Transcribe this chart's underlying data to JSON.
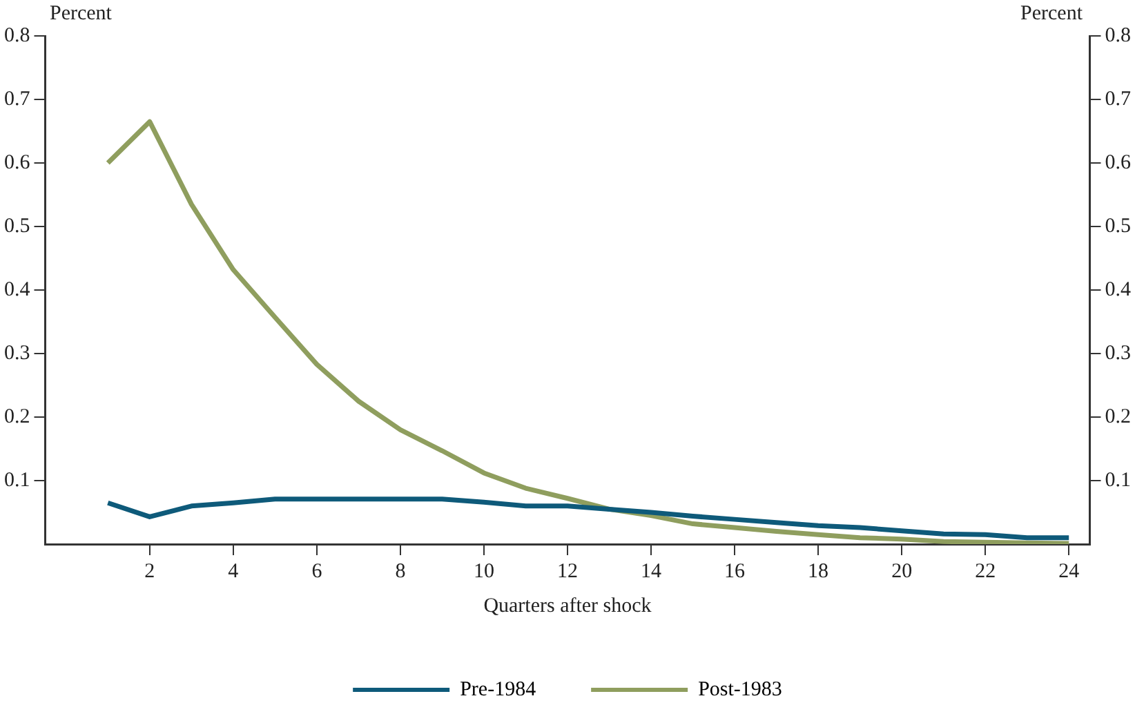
{
  "chart_data": {
    "type": "line",
    "xlabel": "Quarters after shock",
    "ylabel": "Percent",
    "y2label": "Percent",
    "x": [
      1,
      2,
      3,
      4,
      5,
      6,
      7,
      8,
      9,
      10,
      11,
      12,
      13,
      14,
      15,
      16,
      17,
      18,
      19,
      20,
      21,
      22,
      23,
      24
    ],
    "series": [
      {
        "name": "Pre-1984",
        "color": "#0e5a7a",
        "values": [
          0.065,
          0.043,
          0.06,
          0.065,
          0.071,
          0.071,
          0.071,
          0.071,
          0.071,
          0.066,
          0.06,
          0.06,
          0.055,
          0.05,
          0.044,
          0.039,
          0.034,
          0.029,
          0.026,
          0.021,
          0.016,
          0.015,
          0.01,
          0.01
        ]
      },
      {
        "name": "Post-1983",
        "color": "#8f9e5e",
        "values": [
          0.6,
          0.665,
          0.535,
          0.432,
          0.357,
          0.283,
          0.225,
          0.18,
          0.147,
          0.112,
          0.088,
          0.072,
          0.055,
          0.045,
          0.032,
          0.026,
          0.02,
          0.015,
          0.01,
          0.008,
          0.004,
          0.003,
          0.002,
          0.001
        ]
      }
    ],
    "xlim": [
      -0.5,
      24.5
    ],
    "xticks": [
      2,
      4,
      6,
      8,
      10,
      12,
      14,
      16,
      18,
      20,
      22,
      24
    ],
    "ylim": [
      0,
      0.8
    ],
    "yticks": [
      0.1,
      0.2,
      0.3,
      0.4,
      0.5,
      0.6,
      0.7,
      0.8
    ],
    "y2lim": [
      0,
      0.8
    ],
    "y2ticks": [
      0.1,
      0.2,
      0.3,
      0.4,
      0.5,
      0.6,
      0.7,
      0.8
    ],
    "grid": false,
    "legend": "bottom",
    "marker": "none",
    "line_style": "solid"
  }
}
